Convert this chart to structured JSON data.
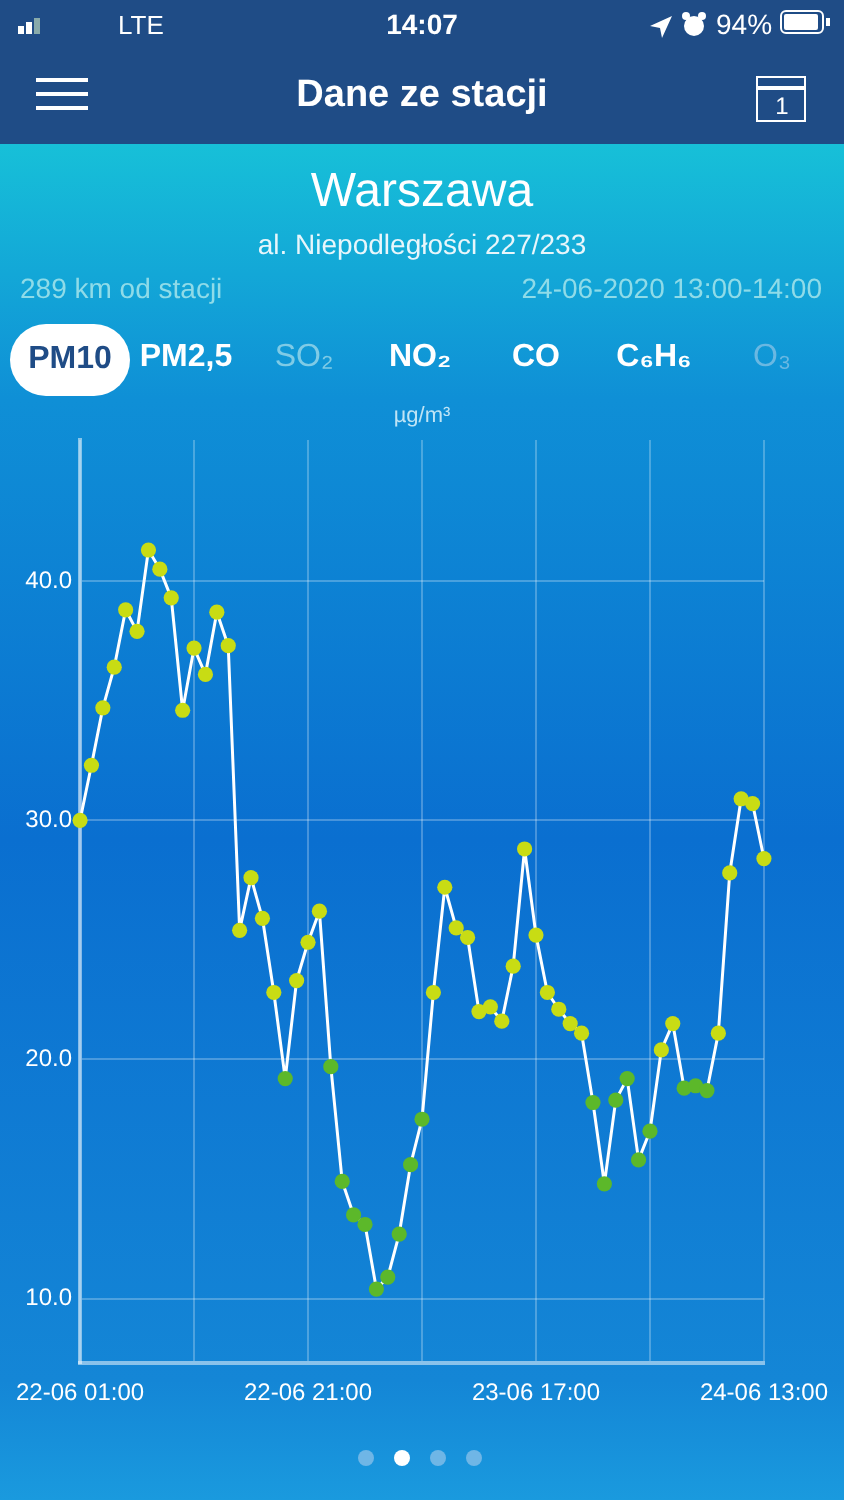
{
  "chart_data": {
    "type": "line",
    "title": "Warszawa",
    "subtitle": "al. Niepodległości 227/233",
    "ylabel": "µg/m³",
    "annotations": [
      "14:07",
      "LTE",
      "94%",
      "Dane ze stacji",
      "1",
      "289 km od stacji",
      "24-06-2020 13:00-14:00",
      "PM10",
      "PM2,5",
      "SO₂",
      "NO₂",
      "CO",
      "C₆H₆",
      "O₃"
    ],
    "categories": [
      "22-06 01:00",
      null,
      null,
      null,
      null,
      null,
      null,
      null,
      null,
      null,
      null,
      null,
      null,
      null,
      null,
      null,
      null,
      null,
      null,
      null,
      "22-06 21:00",
      null,
      null,
      null,
      null,
      null,
      null,
      null,
      null,
      null,
      null,
      null,
      null,
      null,
      null,
      null,
      null,
      null,
      null,
      null,
      "23-06 17:00",
      null,
      null,
      null,
      null,
      null,
      null,
      null,
      null,
      null,
      null,
      null,
      null,
      null,
      null,
      null,
      null,
      null,
      null,
      null,
      "24-06 13:00"
    ],
    "series": [
      {
        "color": "#ffffff",
        "values": [
          30.0,
          32.3,
          34.7,
          36.4,
          38.8,
          37.9,
          41.3,
          40.5,
          39.3,
          34.6,
          37.2,
          36.1,
          38.7,
          37.3,
          25.4,
          27.6,
          25.9,
          22.8,
          19.2,
          23.3,
          24.9,
          26.2,
          19.7,
          14.9,
          13.5,
          13.1,
          10.4,
          10.9,
          12.7,
          15.6,
          17.5,
          22.8,
          27.2,
          25.5,
          25.1,
          22.0,
          22.2,
          21.6,
          23.9,
          28.8,
          25.2,
          22.8,
          22.1,
          21.5,
          21.1,
          18.2,
          14.8,
          18.3,
          19.2,
          15.8,
          17.0,
          20.4,
          21.5,
          18.8,
          18.9,
          18.7,
          21.1,
          27.8,
          30.9,
          30.7,
          28.4
        ],
        "colors": [
          "#c8dc14",
          "#c8dc14",
          "#c8dc14",
          "#c8dc14",
          "#c8dc14",
          "#c8dc14",
          "#c8dc14",
          "#c8dc14",
          "#c8dc14",
          "#c8dc14",
          "#c8dc14",
          "#c8dc14",
          "#c8dc14",
          "#c8dc14",
          "#c8dc14",
          "#c8dc14",
          "#c8dc14",
          "#c8dc14",
          "#5cb82a",
          "#c8dc14",
          "#c8dc14",
          "#c8dc14",
          "#5cb82a",
          "#5cb82a",
          "#5cb82a",
          "#5cb82a",
          "#5cb82a",
          "#5cb82a",
          "#5cb82a",
          "#5cb82a",
          "#5cb82a",
          "#c8dc14",
          "#c8dc14",
          "#c8dc14",
          "#c8dc14",
          "#c8dc14",
          "#c8dc14",
          "#c8dc14",
          "#c8dc14",
          "#c8dc14",
          "#c8dc14",
          "#c8dc14",
          "#c8dc14",
          "#c8dc14",
          "#c8dc14",
          "#5cb82a",
          "#5cb82a",
          "#5cb82a",
          "#5cb82a",
          "#5cb82a",
          "#5cb82a",
          "#c8dc14",
          "#c8dc14",
          "#5cb82a",
          "#5cb82a",
          "#5cb82a",
          "#c8dc14",
          "#c8dc14",
          "#c8dc14",
          "#c8dc14",
          "#c8dc14"
        ]
      }
    ],
    "ylim": [
      7.3,
      45.9
    ],
    "yticks": [
      {
        "value": 10,
        "label": "10.0"
      },
      {
        "value": 20,
        "label": "20.0"
      },
      {
        "value": 30,
        "label": "30.0"
      },
      {
        "value": 40,
        "label": "40.0"
      }
    ],
    "grid": true,
    "legend": false,
    "marker": "circle",
    "line_style": "solid"
  }
}
